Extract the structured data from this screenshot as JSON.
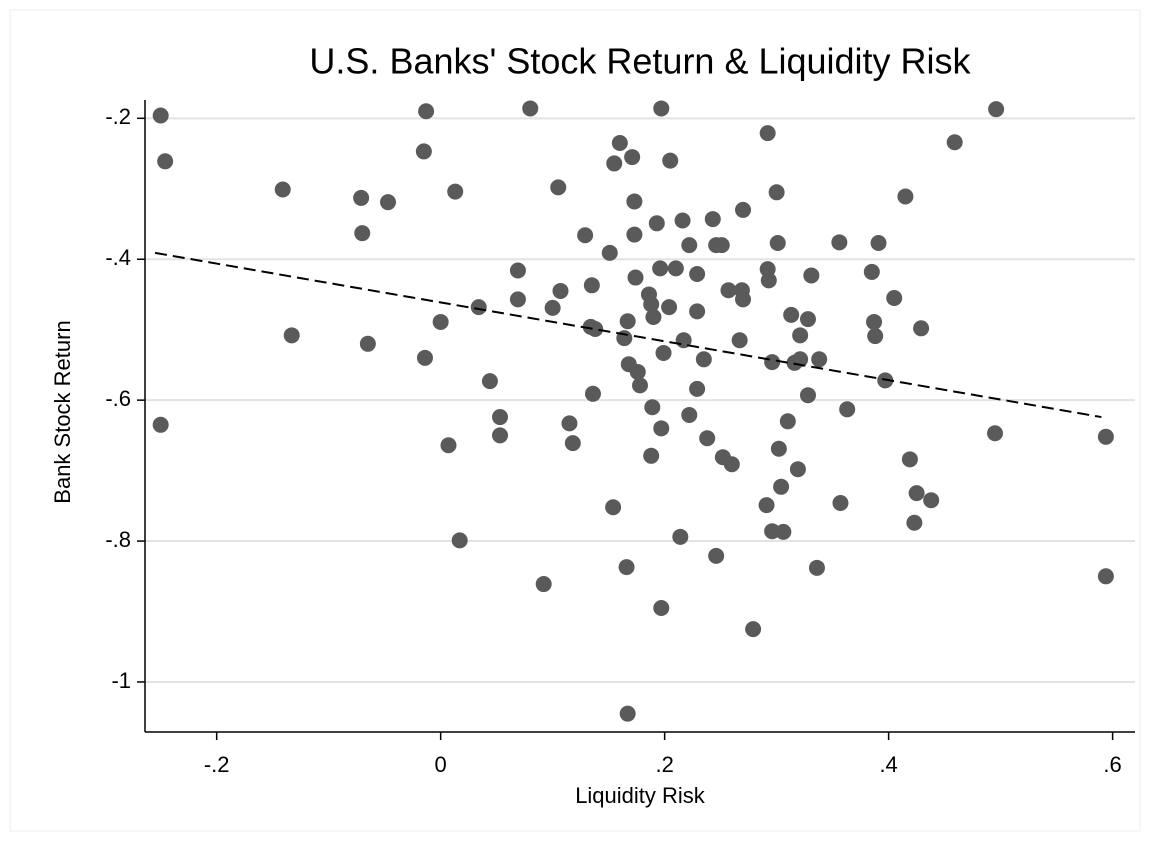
{
  "chart_data": {
    "type": "scatter",
    "title": "U.S. Banks' Stock Return & Liquidity Risk",
    "xlabel": "Liquidity Risk",
    "ylabel": "Bank Stock Return",
    "color": "#5a5a5a",
    "grid": true,
    "xlim": [
      -0.264,
      0.62
    ],
    "ylim": [
      -1.071,
      -0.174
    ],
    "xticks": [
      {
        "value": -0.2,
        "label": "-.2"
      },
      0,
      {
        "value": 0.2,
        "label": ".2"
      },
      {
        "value": 0.4,
        "label": ".4"
      },
      {
        "value": 0.6,
        "label": ".6"
      }
    ],
    "yticks": [
      {
        "value": -0.2,
        "label": "-.2"
      },
      {
        "value": -0.4,
        "label": "-.4"
      },
      {
        "value": -0.6,
        "label": "-.6"
      },
      {
        "value": -0.8,
        "label": "-.8"
      },
      -1
    ],
    "x": [
      -0.25,
      -0.246,
      -0.25,
      -0.141,
      -0.133,
      -0.071,
      -0.07,
      -0.065,
      -0.047,
      -0.015,
      -0.013,
      -0.014,
      0.013,
      0,
      0.007,
      0.017,
      0.034,
      0.044,
      0.053,
      0.053,
      0.069,
      0.069,
      0.08,
      0.092,
      0.1,
      0.105,
      0.107,
      0.115,
      0.118,
      0.129,
      0.134,
      0.135,
      0.136,
      0.138,
      0.154,
      0.151,
      0.155,
      0.16,
      0.164,
      0.166,
      0.167,
      0.167,
      0.168,
      0.171,
      0.173,
      0.173,
      0.174,
      0.176,
      0.178,
      0.186,
      0.188,
      0.189,
      0.188,
      0.19,
      0.193,
      0.196,
      0.197,
      0.197,
      0.197,
      0.199,
      0.204,
      0.205,
      0.21,
      0.214,
      0.217,
      0.216,
      0.222,
      0.222,
      0.229,
      0.229,
      0.229,
      0.235,
      0.238,
      0.243,
      0.246,
      0.246,
      0.251,
      0.252,
      0.257,
      0.26,
      0.267,
      0.269,
      0.27,
      0.27,
      0.279,
      0.291,
      0.292,
      0.292,
      0.293,
      0.296,
      0.296,
      0.3,
      0.301,
      0.302,
      0.304,
      0.306,
      0.31,
      0.313,
      0.316,
      0.319,
      0.321,
      0.321,
      0.328,
      0.328,
      0.331,
      0.336,
      0.338,
      0.356,
      0.363,
      0.357,
      0.385,
      0.387,
      0.388,
      0.391,
      0.397,
      0.405,
      0.415,
      0.419,
      0.423,
      0.425,
      0.429,
      0.438,
      0.459,
      0.496,
      0.495,
      0.594,
      0.594
    ],
    "y": [
      -0.196,
      -0.261,
      -0.635,
      -0.301,
      -0.508,
      -0.313,
      -0.363,
      -0.52,
      -0.319,
      -0.247,
      -0.19,
      -0.54,
      -0.304,
      -0.489,
      -0.664,
      -0.799,
      -0.468,
      -0.573,
      -0.624,
      -0.65,
      -0.416,
      -0.457,
      -0.186,
      -0.861,
      -0.469,
      -0.298,
      -0.445,
      -0.633,
      -0.661,
      -0.366,
      -0.496,
      -0.437,
      -0.591,
      -0.499,
      -0.752,
      -0.391,
      -0.264,
      -0.235,
      -0.512,
      -0.837,
      -0.488,
      -1.045,
      -0.549,
      -0.255,
      -0.318,
      -0.365,
      -0.426,
      -0.56,
      -0.579,
      -0.45,
      -0.464,
      -0.61,
      -0.679,
      -0.482,
      -0.349,
      -0.413,
      -0.895,
      -0.186,
      -0.64,
      -0.533,
      -0.468,
      -0.26,
      -0.413,
      -0.794,
      -0.515,
      -0.345,
      -0.38,
      -0.621,
      -0.421,
      -0.474,
      -0.584,
      -0.542,
      -0.654,
      -0.343,
      -0.821,
      -0.38,
      -0.38,
      -0.681,
      -0.444,
      -0.691,
      -0.515,
      -0.444,
      -0.457,
      -0.33,
      -0.925,
      -0.749,
      -0.221,
      -0.414,
      -0.43,
      -0.546,
      -0.786,
      -0.305,
      -0.377,
      -0.669,
      -0.723,
      -0.787,
      -0.63,
      -0.479,
      -0.547,
      -0.698,
      -0.508,
      -0.542,
      -0.485,
      -0.593,
      -0.423,
      -0.838,
      -0.542,
      -0.376,
      -0.613,
      -0.746,
      -0.418,
      -0.489,
      -0.509,
      -0.377,
      -0.572,
      -0.455,
      -0.311,
      -0.684,
      -0.774,
      -0.732,
      -0.498,
      -0.742,
      -0.234,
      -0.187,
      -0.647,
      -0.652,
      -0.85
    ],
    "fit_line": {
      "x": [
        -0.255,
        0.59
      ],
      "y": [
        -0.391,
        -0.624
      ],
      "color": "#000000",
      "style": "dashed"
    }
  }
}
